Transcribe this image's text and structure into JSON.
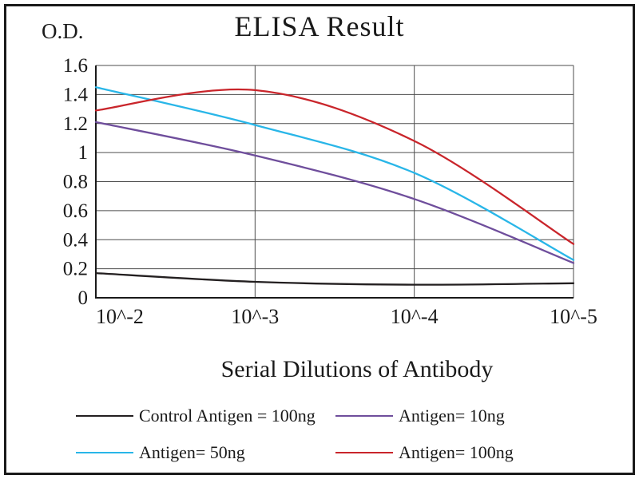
{
  "chart_data": {
    "type": "line",
    "title": "ELISA Result",
    "xlabel": "Serial Dilutions of Antibody",
    "ylabel": "O.D.",
    "categories": [
      "10^-2",
      "10^-3",
      "10^-4",
      "10^-5"
    ],
    "ylim": [
      0,
      1.6
    ],
    "ytick_step": 0.2,
    "grid": true,
    "legend_position": "bottom",
    "axis_color": "#1a1a1a",
    "grid_color": "#4d4d4d",
    "series": [
      {
        "name": "Control Antigen = 100ng",
        "color": "#231f20",
        "values": [
          0.17,
          0.11,
          0.09,
          0.1
        ]
      },
      {
        "name": "Antigen= 10ng",
        "color": "#6f4e9c",
        "values": [
          1.21,
          0.98,
          0.68,
          0.24
        ]
      },
      {
        "name": "Antigen= 50ng",
        "color": "#29b6e8",
        "values": [
          1.45,
          1.19,
          0.86,
          0.26
        ]
      },
      {
        "name": "Antigen= 100ng",
        "color": "#c9252b",
        "values": [
          1.29,
          1.43,
          1.08,
          0.37
        ]
      }
    ]
  }
}
